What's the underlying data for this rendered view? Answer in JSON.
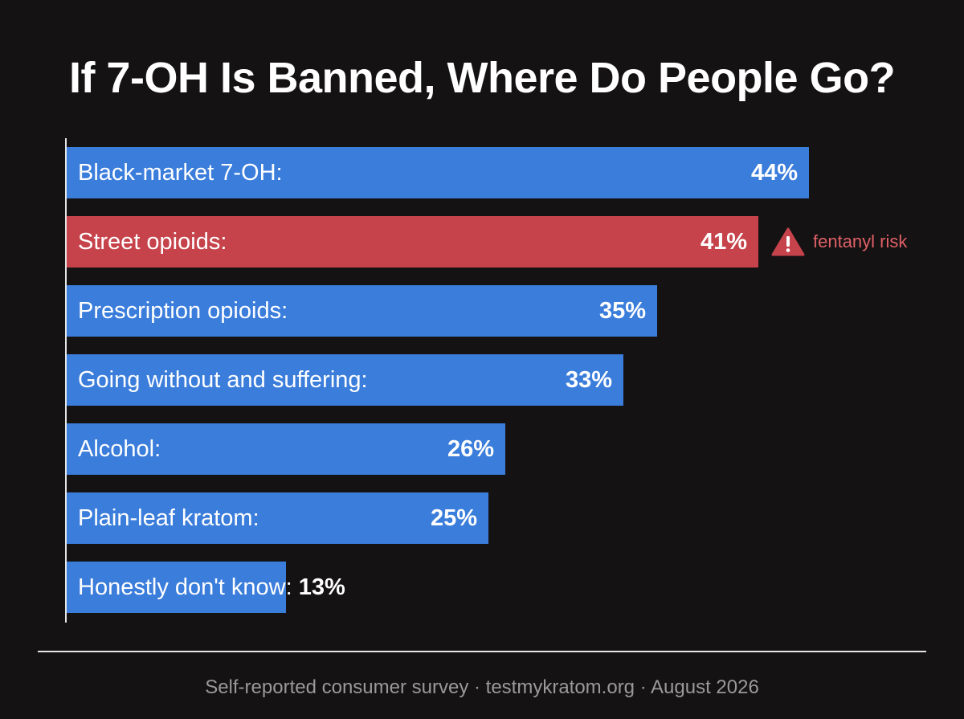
{
  "chart_data": {
    "type": "bar",
    "orientation": "horizontal",
    "title": "If 7-OH Is Banned, Where Do People Go?",
    "categories": [
      "Black-market 7-OH:",
      "Street opioids:",
      "Prescription opioids:",
      "Going without and suffering:",
      "Alcohol:",
      "Plain-leaf kratom:",
      "Honestly don't know:"
    ],
    "values": [
      44,
      41,
      35,
      33,
      26,
      25,
      13
    ],
    "value_labels": [
      "44%",
      "41%",
      "35%",
      "33%",
      "26%",
      "25%",
      "13%"
    ],
    "unit": "%",
    "highlight_index": 1,
    "annotation": {
      "index": 1,
      "icon": "warning-triangle-icon",
      "text": "fentanyl risk"
    },
    "colors": {
      "default_bar": "#3b7ddb",
      "highlight_bar": "#c6434b",
      "annotation_text": "#e06066",
      "background": "#141213"
    },
    "grid": false,
    "legend": "none",
    "xlabel": "",
    "ylabel": ""
  },
  "footer": {
    "source": "Self-reported consumer survey · testmykratom.org · August 2026"
  }
}
